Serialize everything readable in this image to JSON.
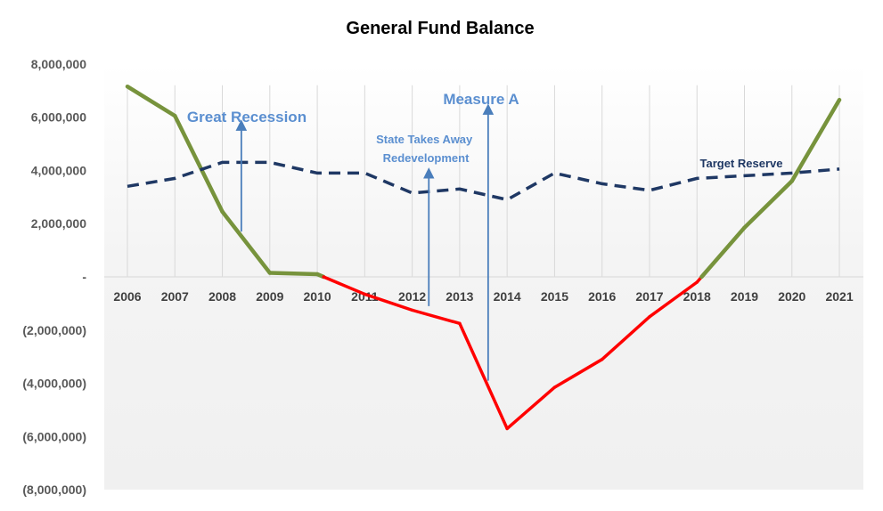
{
  "chart_data": {
    "type": "line",
    "title": "General Fund Balance",
    "xlabel": "",
    "ylabel": "",
    "x": [
      "2006",
      "2007",
      "2008",
      "2009",
      "2010",
      "2011",
      "2012",
      "2013",
      "2014",
      "2015",
      "2016",
      "2017",
      "2018",
      "2019",
      "2020",
      "2021"
    ],
    "ylim": [
      -8000000,
      8000000
    ],
    "y_ticks": [
      8000000,
      6000000,
      4000000,
      2000000,
      0,
      -2000000,
      -4000000,
      -6000000,
      -8000000
    ],
    "y_tick_labels": [
      "8,000,000",
      "6,000,000",
      "4,000,000",
      "2,000,000",
      "-",
      "(2,000,000)",
      "(4,000,000)",
      "(6,000,000)",
      "(8,000,000)"
    ],
    "grid": "vertical",
    "series": [
      {
        "name": "",
        "style": "solid",
        "values": [
          7150000,
          6050000,
          2450000,
          150000,
          100000,
          -650000,
          -1250000,
          -1750000,
          -5700000,
          -4150000,
          -3100000,
          -1500000,
          -200000,
          1850000,
          3600000,
          6650000
        ],
        "positive_color": "#77933c",
        "negative_color": "#ff0000"
      },
      {
        "name": "Target Reserve",
        "style": "dashed",
        "color": "#1f3864",
        "values": [
          3400000,
          3700000,
          4300000,
          4300000,
          3900000,
          3900000,
          3150000,
          3300000,
          2900000,
          3900000,
          3500000,
          3250000,
          3700000,
          3800000,
          3900000,
          4050000
        ]
      }
    ],
    "annotations": [
      {
        "id": "great-recession",
        "text": [
          "Great Recession"
        ],
        "arrow_x": 2008.4,
        "arrow_from": 1700000,
        "arrow_to": 5700000
      },
      {
        "id": "state-takes-away",
        "text": [
          "State Takes Away",
          "Redevelopment"
        ],
        "arrow_x": 2012.35,
        "arrow_from": -1100000,
        "arrow_to": 3900000
      },
      {
        "id": "measure-a",
        "text": [
          "Measure A"
        ],
        "arrow_x": 2013.6,
        "arrow_from": -3900000,
        "arrow_to": 6300000
      },
      {
        "id": "target-reserve",
        "text": [
          "Target Reserve"
        ]
      }
    ],
    "colors": {
      "annotation": "#5b8fd0",
      "arrow": "#4a7ebb",
      "grid": "#d9d9d9"
    }
  }
}
